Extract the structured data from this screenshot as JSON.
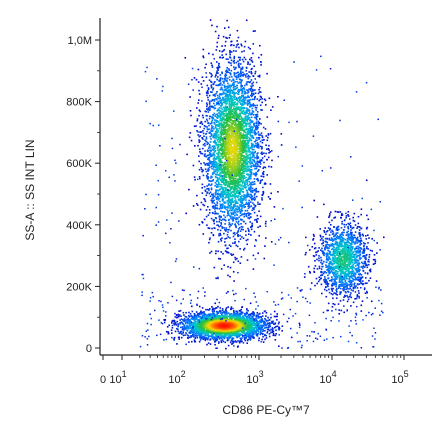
{
  "chart_data": {
    "type": "scatter",
    "subtype": "flow-cytometry-density-dot-plot",
    "title": "",
    "xlabel": "CD86 PE-Cy™7",
    "ylabel": "SS-A :: SS INT LIN",
    "x_scale": "biexponential",
    "x_ticks": [
      {
        "base": "0",
        "exp": "",
        "value": 0
      },
      {
        "base": "10",
        "exp": "1",
        "value": 10
      },
      {
        "base": "10",
        "exp": "2",
        "value": 100
      },
      {
        "base": "10",
        "exp": "3",
        "value": 1000
      },
      {
        "base": "10",
        "exp": "4",
        "value": 10000
      },
      {
        "base": "10",
        "exp": "5",
        "value": 100000
      }
    ],
    "y_scale": "linear",
    "ylim": [
      0,
      1050000
    ],
    "y_ticks": [
      {
        "label": "0",
        "value": 0
      },
      {
        "label": "200K",
        "value": 200000
      },
      {
        "label": "400K",
        "value": 400000
      },
      {
        "label": "600K",
        "value": 600000
      },
      {
        "label": "800K",
        "value": 800000
      },
      {
        "label": "1,0M",
        "value": 1000000
      }
    ],
    "grid": false,
    "legend": "none",
    "color_scale": "density: blue (low) → cyan → green → yellow → red (high)",
    "populations": [
      {
        "x_center": 450,
        "y_center": 650000,
        "x_spread_decades": 0.18,
        "y_spread": 140000,
        "events": 4200,
        "peak_color": "#20c070"
      },
      {
        "x_center": 350,
        "y_center": 75000,
        "x_spread_decades": 0.28,
        "y_spread": 22000,
        "events": 2600,
        "peak_color": "#ff2000"
      },
      {
        "x_center": 14000,
        "y_center": 290000,
        "x_spread_decades": 0.17,
        "y_spread": 60000,
        "events": 1400,
        "peak_color": "#40b0c0"
      }
    ],
    "background_events": 380
  }
}
